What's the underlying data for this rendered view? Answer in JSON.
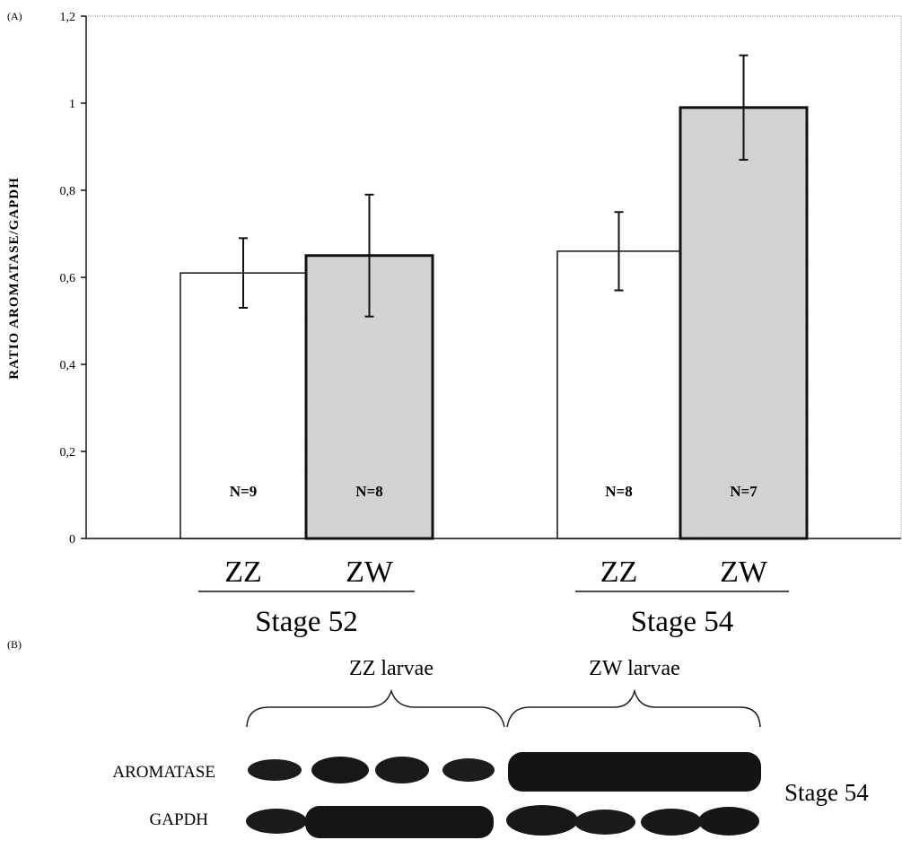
{
  "panel_a": {
    "panel_label": "(A)",
    "chart_data": {
      "type": "bar",
      "ylabel": "RATIO AROMATASE/GAPDH",
      "ylim": [
        0,
        1.2
      ],
      "yticks": [
        "0",
        "0,2",
        "0,4",
        "0,6",
        "0,8",
        "1",
        "1,2"
      ],
      "groups": [
        {
          "label": "Stage 52",
          "bars": [
            {
              "category": "ZZ",
              "value": 0.61,
              "error": 0.08,
              "n_label": "N=9",
              "fill": "white"
            },
            {
              "category": "ZW",
              "value": 0.65,
              "error": 0.14,
              "n_label": "N=8",
              "fill": "stippled-grey"
            }
          ]
        },
        {
          "label": "Stage 54",
          "bars": [
            {
              "category": "ZZ",
              "value": 0.66,
              "error": 0.09,
              "n_label": "N=8",
              "fill": "white"
            },
            {
              "category": "ZW",
              "value": 0.99,
              "error": 0.12,
              "n_label": "N=7",
              "fill": "stippled-grey"
            }
          ]
        }
      ],
      "grid": false
    }
  },
  "panel_b": {
    "panel_label": "(B)",
    "group_labels": [
      "ZZ larvae",
      "ZW larvae"
    ],
    "row_labels": [
      "AROMATASE",
      "GAPDH"
    ],
    "side_label": "Stage 54"
  },
  "colors": {
    "ink": "#111111",
    "bar_white": "#ffffff",
    "bar_grey": "#d8d8d8",
    "band": "#161616"
  }
}
